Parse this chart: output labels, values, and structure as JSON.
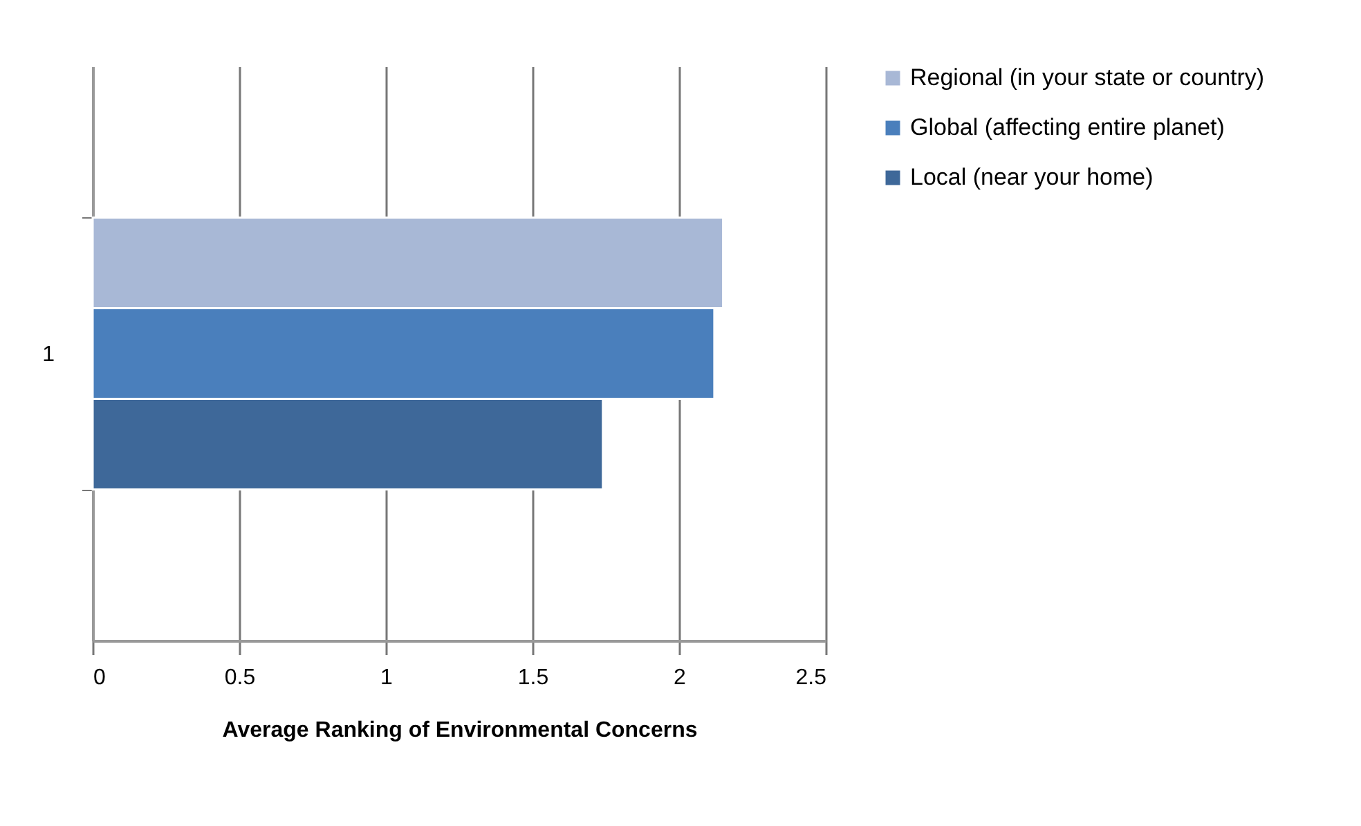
{
  "chart_data": {
    "type": "bar",
    "orientation": "horizontal",
    "categories": [
      "1"
    ],
    "series": [
      {
        "name": "Regional (in your state or country)",
        "color": "#a8b8d6",
        "values": [
          2.15
        ]
      },
      {
        "name": "Global (affecting entire planet)",
        "color": "#4a7fbc",
        "values": [
          2.12
        ]
      },
      {
        "name": "Local (near your home)",
        "color": "#3e6899",
        "values": [
          1.74
        ]
      }
    ],
    "xlim": [
      0,
      2.5
    ],
    "xticks": [
      0,
      0.5,
      1,
      1.5,
      2,
      2.5
    ],
    "xlabel": "Average Ranking of Environmental Concerns",
    "grid": "x",
    "legend": "right"
  }
}
